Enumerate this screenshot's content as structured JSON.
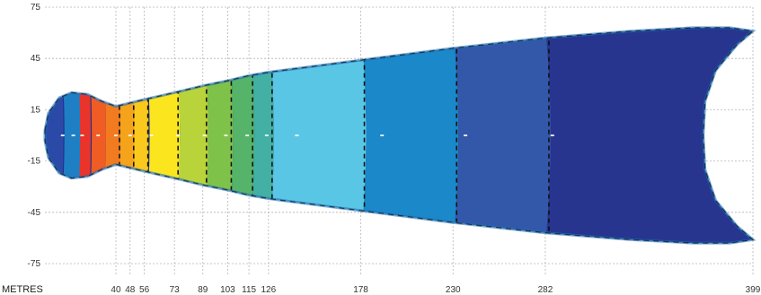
{
  "chart_data": {
    "type": "heatmap",
    "title": "",
    "xlabel": "METRES",
    "ylabel": "",
    "x_ticks": [
      40,
      48,
      56,
      73,
      89,
      103,
      115,
      126,
      178,
      230,
      282,
      399
    ],
    "y_ticks": [
      75,
      45,
      15,
      -15,
      -45,
      -75
    ],
    "xlim": [
      0,
      399
    ],
    "ylim": [
      -75,
      75
    ],
    "grid": true,
    "legend": "none",
    "outline": [
      [
        0,
        3
      ],
      [
        2,
        13
      ],
      [
        8,
        22
      ],
      [
        15,
        25
      ],
      [
        24,
        24
      ],
      [
        32,
        20
      ],
      [
        40,
        17
      ],
      [
        48,
        19
      ],
      [
        56,
        21
      ],
      [
        73,
        25
      ],
      [
        89,
        29
      ],
      [
        103,
        32
      ],
      [
        115,
        35
      ],
      [
        126,
        37
      ],
      [
        178,
        44
      ],
      [
        230,
        51
      ],
      [
        282,
        57
      ],
      [
        330,
        61
      ],
      [
        365,
        63
      ],
      [
        386,
        63
      ],
      [
        399,
        61
      ],
      [
        390,
        53
      ],
      [
        378,
        38
      ],
      [
        372,
        20
      ],
      [
        371,
        0
      ],
      [
        372,
        -20
      ],
      [
        378,
        -38
      ],
      [
        390,
        -53
      ],
      [
        399,
        -61
      ],
      [
        386,
        -63
      ],
      [
        365,
        -63
      ],
      [
        330,
        -61
      ],
      [
        282,
        -57
      ],
      [
        230,
        -51
      ],
      [
        178,
        -44
      ],
      [
        126,
        -37
      ],
      [
        115,
        -35
      ],
      [
        103,
        -32
      ],
      [
        89,
        -29
      ],
      [
        73,
        -25
      ],
      [
        56,
        -21
      ],
      [
        48,
        -19
      ],
      [
        40,
        -17
      ],
      [
        32,
        -20
      ],
      [
        24,
        -24
      ],
      [
        15,
        -25
      ],
      [
        8,
        -22
      ],
      [
        2,
        -13
      ],
      [
        0,
        -3
      ]
    ],
    "bands": [
      {
        "x_end": 8,
        "color": "#2b4aa8"
      },
      {
        "x_end": 18,
        "color": "#1f7fc4"
      },
      {
        "x_end": 24,
        "color": "#e8342a"
      },
      {
        "x_end": 32,
        "color": "#ef5c24"
      },
      {
        "x_end": 40,
        "color": "#f27b1f"
      },
      {
        "x_end": 48,
        "color": "#f6a31c"
      },
      {
        "x_end": 56,
        "color": "#fbc91d"
      },
      {
        "x_end": 73,
        "color": "#fae51f"
      },
      {
        "x_end": 89,
        "color": "#b9d43a"
      },
      {
        "x_end": 103,
        "color": "#7fc24a"
      },
      {
        "x_end": 115,
        "color": "#55b36a"
      },
      {
        "x_end": 126,
        "color": "#42b0a4"
      },
      {
        "x_end": 178,
        "color": "#5ac6e6"
      },
      {
        "x_end": 230,
        "color": "#1a88c9"
      },
      {
        "x_end": 282,
        "color": "#3358aa"
      },
      {
        "x_end": 399,
        "color": "#27358f"
      }
    ],
    "colors": {
      "outer_fill": "#22318c",
      "edge_blue": "#1d6fb8",
      "contour": "#111111",
      "grid": "#b5b5b5",
      "hotspot": "#ffffff"
    }
  }
}
